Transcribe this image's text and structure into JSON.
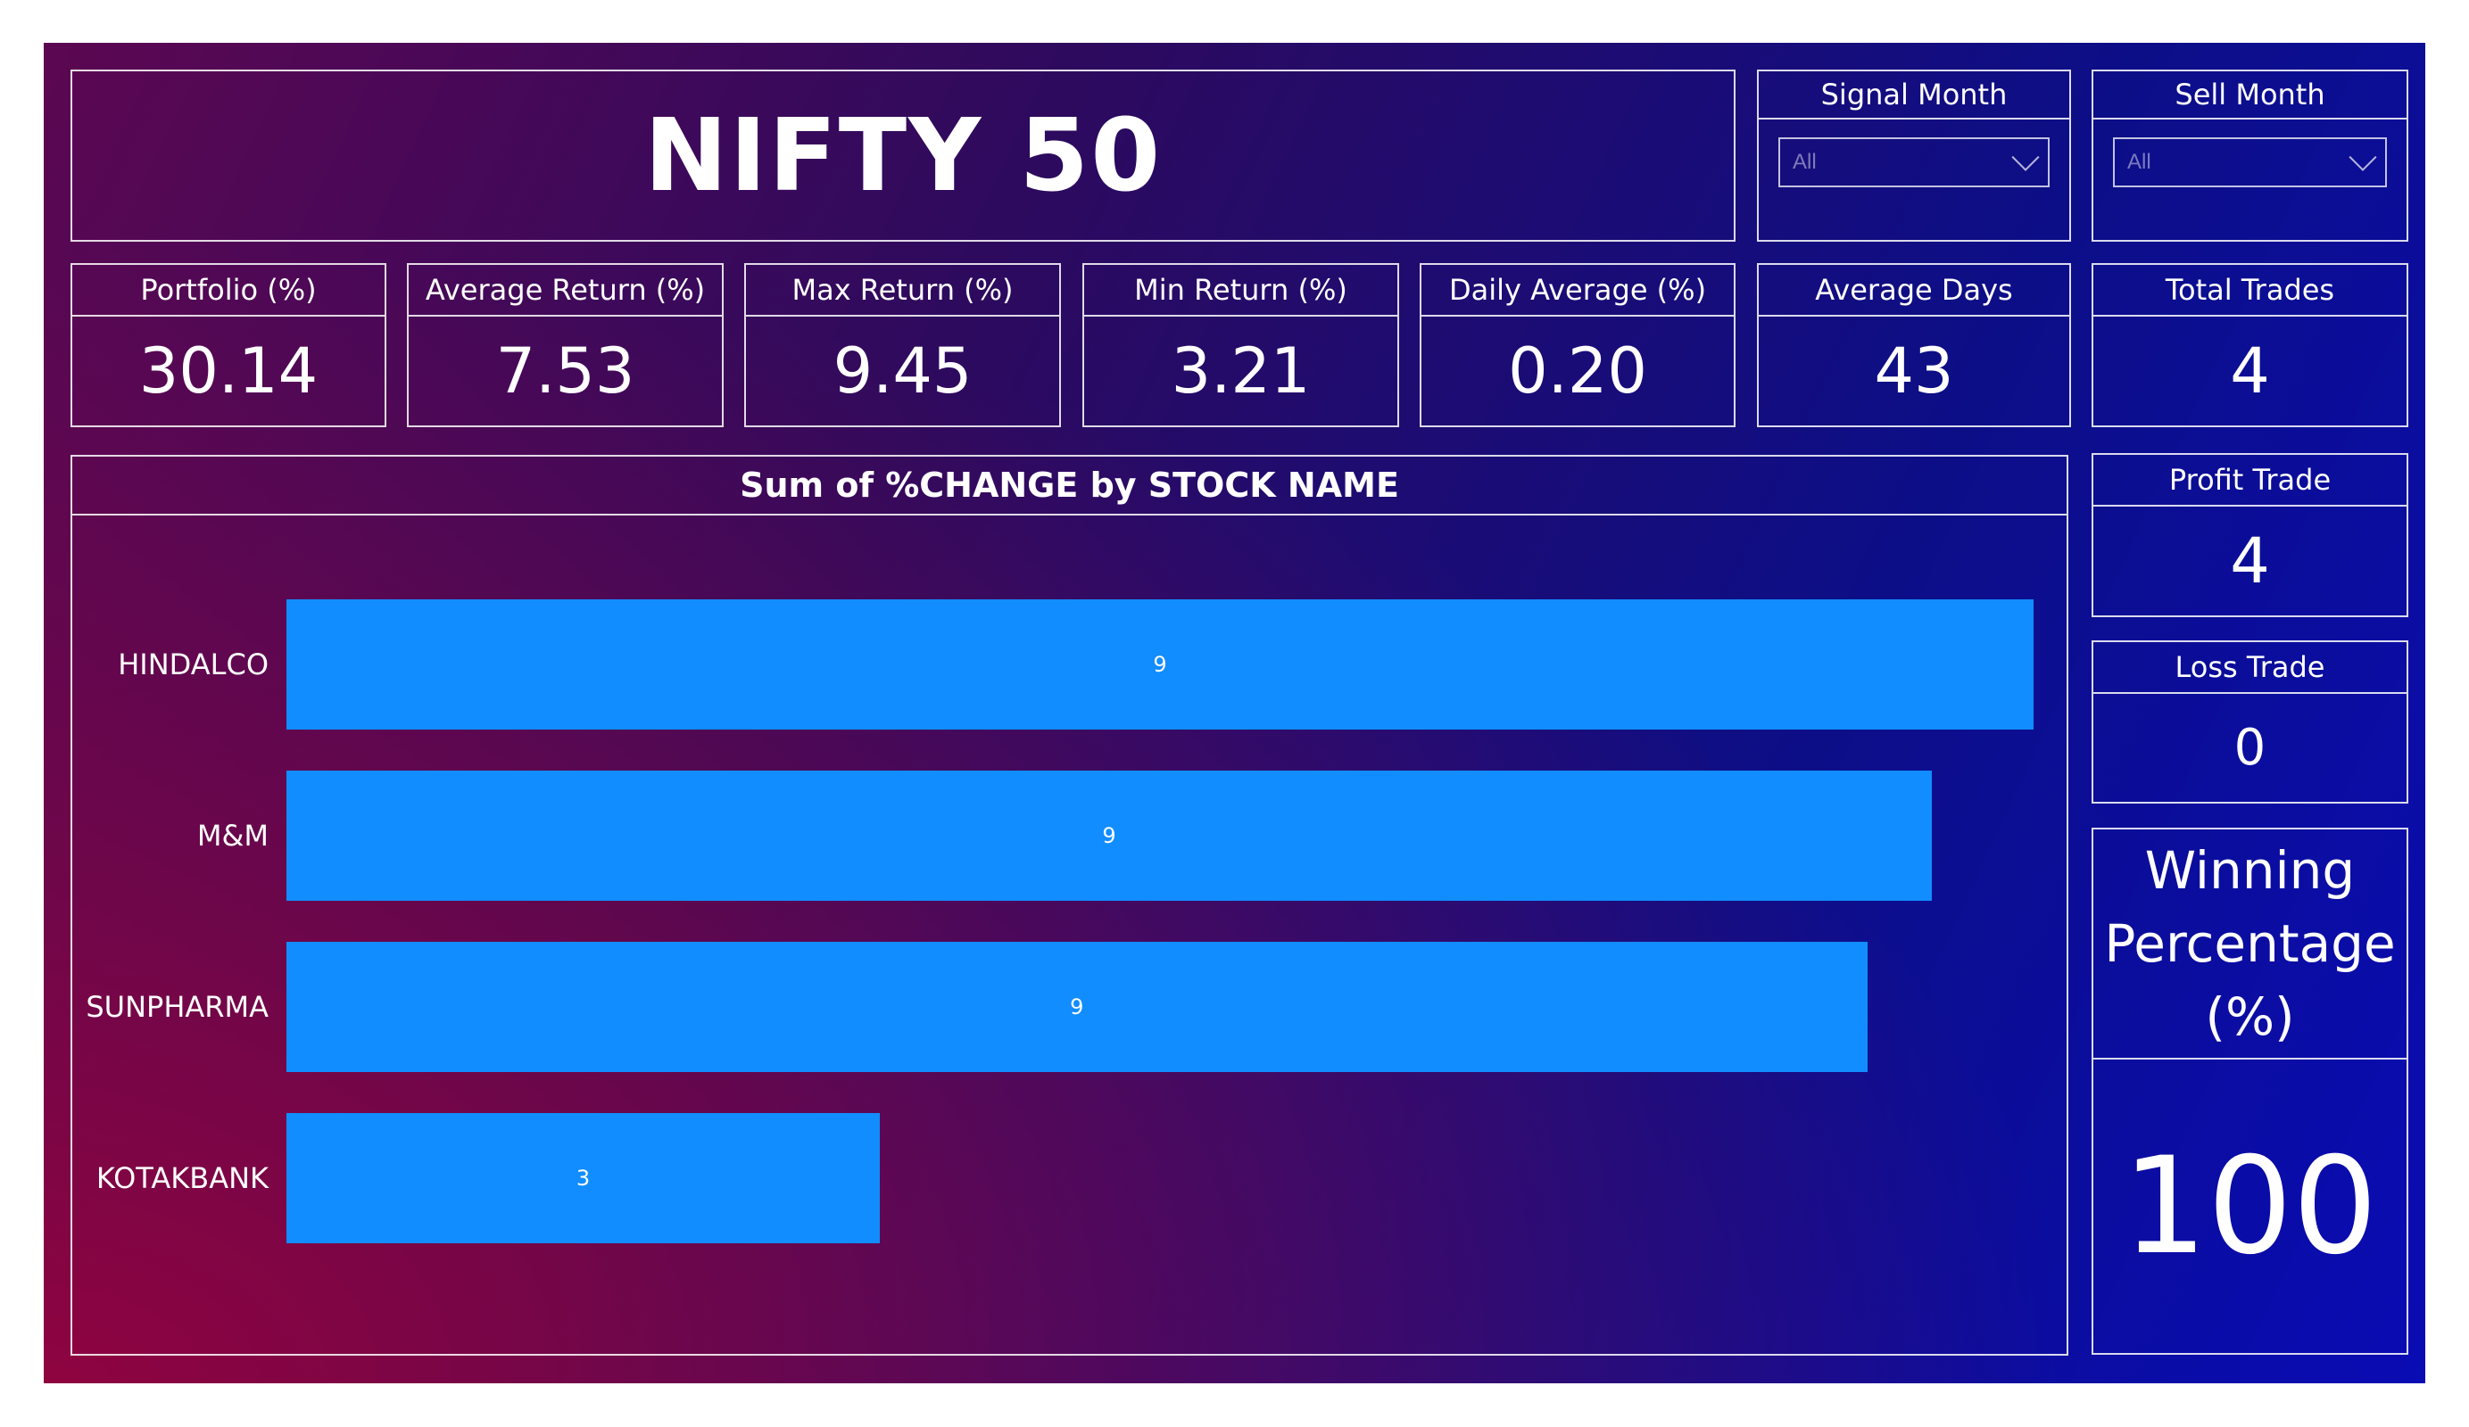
{
  "header": {
    "title": "NIFTY 50"
  },
  "slicers": [
    {
      "label": "Signal Month",
      "value": "All"
    },
    {
      "label": "Sell Month",
      "value": "All"
    }
  ],
  "kpis": {
    "portfolio": {
      "label": "Portfolio (%)",
      "value": "30.14"
    },
    "average_return": {
      "label": "Average Return (%)",
      "value": "7.53"
    },
    "max_return": {
      "label": "Max Return (%)",
      "value": "9.45"
    },
    "min_return": {
      "label": "Min Return (%)",
      "value": "3.21"
    },
    "daily_average": {
      "label": "Daily Average (%)",
      "value": "0.20"
    },
    "average_days": {
      "label": "Average Days",
      "value": "43"
    },
    "total_trades": {
      "label": "Total Trades",
      "value": "4"
    },
    "profit_trade": {
      "label": "Profit Trade",
      "value": "4"
    },
    "loss_trade": {
      "label": "Loss Trade",
      "value": "0"
    },
    "winning_percentage": {
      "label": "Winning Percentage (%)",
      "value": "100"
    }
  },
  "chart_data": {
    "type": "bar",
    "orientation": "horizontal",
    "title": "Sum of %CHANGE by STOCK NAME",
    "categories": [
      "HINDALCO",
      "M&M",
      "SUNPHARMA",
      "KOTAKBANK"
    ],
    "values": [
      9.45,
      8.9,
      8.55,
      3.21
    ],
    "data_labels": [
      "9",
      "9",
      "9",
      "3"
    ],
    "xlim": [
      0,
      9.45
    ],
    "bar_color": "#118dff",
    "grid": false,
    "legend": "none"
  },
  "colors": {
    "bar": "#118dff",
    "border": "#ffffff",
    "background_start": "#8e0440",
    "background_end": "#0a0cb4"
  }
}
